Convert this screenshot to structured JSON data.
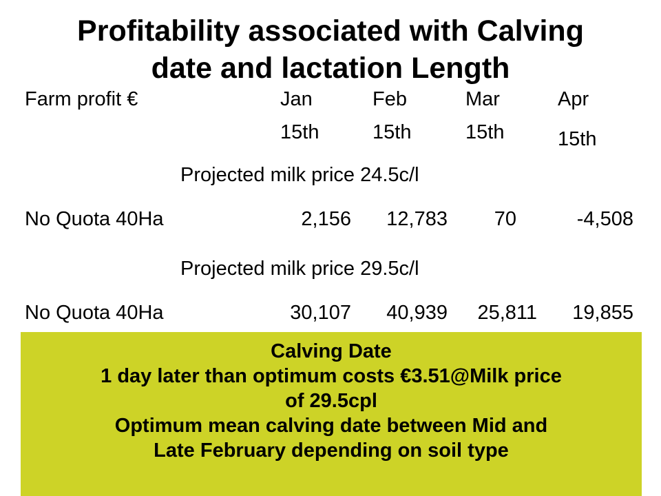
{
  "title": {
    "line1": "Profitability associated with Calving",
    "line2": "date and lactation Length"
  },
  "table": {
    "row_label_header": "Farm profit €",
    "columns": [
      {
        "month": "Jan",
        "day": "15th"
      },
      {
        "month": "Feb",
        "day": "15th"
      },
      {
        "month": "Mar",
        "day": "15th"
      },
      {
        "month": "Apr",
        "day": "15th"
      }
    ],
    "scenarios": [
      {
        "caption": "Projected milk price 24.5c/l",
        "row_label": "No Quota 40Ha",
        "values": [
          "2,156",
          "12,783",
          "70",
          "-4,508"
        ]
      },
      {
        "caption": "Projected milk price 29.5c/l",
        "row_label": "No Quota 40Ha",
        "values": [
          "30,107",
          "40,939",
          "25,811",
          "19,855"
        ]
      }
    ]
  },
  "callout": {
    "line1": "Calving Date",
    "line2": "1 day later than optimum costs €3.51@Milk price",
    "line3": "of 29.5cpl",
    "line4": "Optimum mean calving date between Mid and",
    "line5": "Late February depending on soil type",
    "background_color": "#cdd327"
  }
}
